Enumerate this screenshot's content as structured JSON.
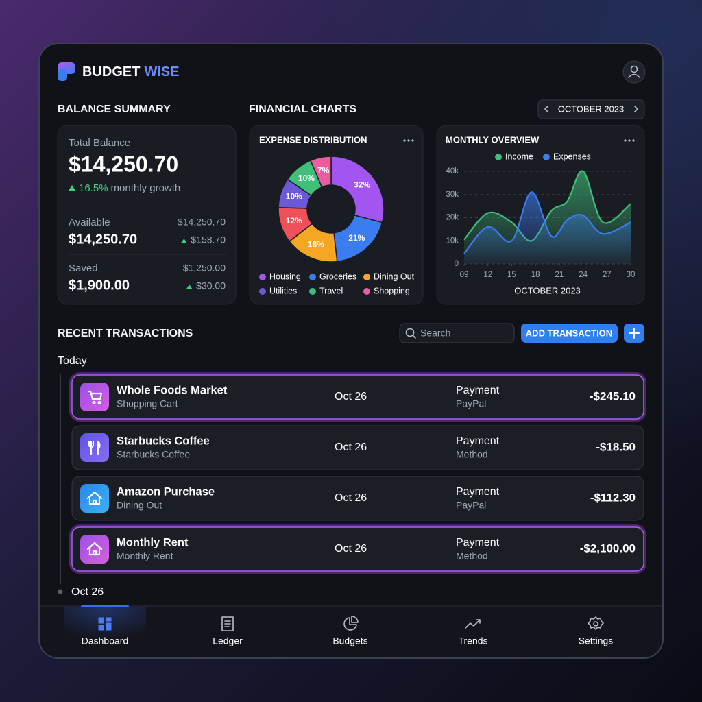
{
  "header": {
    "brand": "BUDGET",
    "brand_accent": "WISE"
  },
  "balance": {
    "title": "BALANCE SUMMARY",
    "total_label": "Total Balance",
    "total": "$14,250.70",
    "growth": "16.5%",
    "growth_label": "monthly growth",
    "rows": [
      {
        "label": "Available",
        "amount": "$14,250.70",
        "reference": "$14,250.70",
        "change": "$158.70"
      },
      {
        "label": "Saved",
        "amount": "$1,900.00",
        "reference": "$1,250.00",
        "change": "$30.00"
      }
    ]
  },
  "charts_section": {
    "title": "FINANCIAL CHARTS",
    "period": "OCTOBER 2023"
  },
  "chart_data": [
    {
      "type": "pie",
      "title": "EXPENSE DISTRIBUTION",
      "categories": [
        "Housing",
        "Groceries",
        "Dining Out",
        null,
        "Utilities",
        "Travel",
        "Shopping"
      ],
      "values": [
        32,
        21,
        18,
        12,
        10,
        10,
        7
      ],
      "value_labels": [
        "32%",
        "21%",
        "18%",
        "12%",
        "10%",
        "10%",
        "7%"
      ],
      "colors": [
        "#a355f0",
        "#3b7cf0",
        "#f5a623",
        "#f0505a",
        "#6a5ad8",
        "#3fbf7a",
        "#ec5ca0"
      ]
    },
    {
      "type": "area",
      "title": "MONTHLY OVERVIEW",
      "x": [
        9,
        12,
        15,
        17.5,
        20,
        22,
        24,
        26.5,
        30
      ],
      "xlabel": "OCTOBER 2023",
      "series": [
        {
          "name": "Income",
          "color": "#3fbf7a",
          "values": [
            10500,
            22000,
            18000,
            10000,
            23000,
            27000,
            40000,
            18000,
            26000
          ]
        },
        {
          "name": "Expenses",
          "color": "#3b7cf0",
          "values": [
            4500,
            16000,
            10000,
            31000,
            12000,
            19000,
            21000,
            13000,
            18000
          ]
        }
      ],
      "xlim": [
        9,
        30
      ],
      "ylim": [
        0,
        40000
      ],
      "xticks": [
        {
          "value": 9,
          "label": "09"
        },
        12,
        15,
        18,
        21,
        24,
        27,
        30
      ],
      "yticks": [
        0,
        {
          "value": 10000,
          "label": "10k"
        },
        {
          "value": 20000,
          "label": "20k"
        },
        {
          "value": 30000,
          "label": "30k"
        },
        {
          "value": 40000,
          "label": "40k"
        }
      ],
      "grid": true,
      "legend": "top"
    }
  ],
  "transactions": {
    "title": "RECENT TRANSACTIONS",
    "search_placeholder": "Search",
    "add_button": "ADD TRANSACTION",
    "today": "Today",
    "items": [
      {
        "name": "Whole Foods Market",
        "detail": "Shopping Cart",
        "date": "Oct 26",
        "method": "Payment",
        "method_detail": "PayPal",
        "amount": "-$245.10"
      },
      {
        "name": "Starbucks Coffee",
        "detail": "Starbucks Coffee",
        "date": "Oct 26",
        "method": "Payment",
        "method_detail": "Method",
        "amount": "-$18.50"
      },
      {
        "name": "Amazon Purchase",
        "detail": "Dining Out",
        "date": "Oct 26",
        "method": "Payment",
        "method_detail": "PayPal",
        "amount": "-$112.30"
      },
      {
        "name": "Monthly Rent",
        "detail": "Monthly Rent",
        "date": "Oct 26",
        "method": "Payment",
        "method_detail": "Method",
        "amount": "-$2,100.00"
      }
    ],
    "next_group": "Oct 26"
  },
  "nav": {
    "items": [
      "Dashboard",
      "Ledger",
      "Budgets",
      "Trends",
      "Settings"
    ],
    "active": 0
  }
}
